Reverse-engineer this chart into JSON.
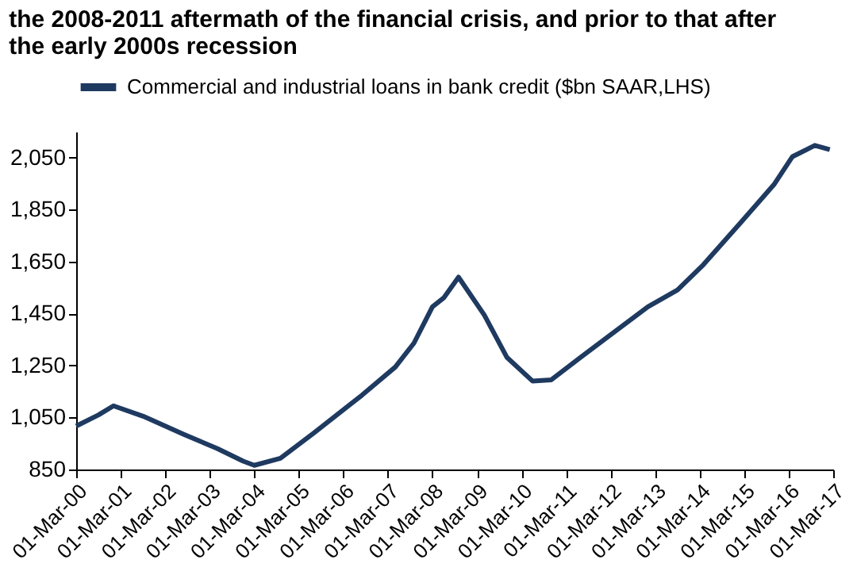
{
  "chart_data": {
    "type": "line",
    "title": [
      "the 2008-2011 aftermath of the financial crisis, and prior to that after",
      "the early 2000s recession"
    ],
    "x": [
      "2000-03",
      "2000-09",
      "2001-01",
      "2001-09",
      "2002-08",
      "2003-05",
      "2003-12",
      "2004-03",
      "2004-10",
      "2005-07",
      "2006-08",
      "2007-05",
      "2007-10",
      "2008-03",
      "2008-06",
      "2008-10",
      "2009-05",
      "2009-11",
      "2010-06",
      "2010-11",
      "2011-07",
      "2013-01",
      "2013-09",
      "2014-04",
      "2015-02",
      "2015-11",
      "2016-04",
      "2016-10",
      "2017-02"
    ],
    "series": [
      {
        "name": "Commercial and industrial loans in bank credit ($bn SAAR,LHS)",
        "color": "#1f3a60",
        "values": [
          1017,
          1060,
          1095,
          1055,
          985,
          931,
          882,
          866,
          893,
          990,
          1136,
          1244,
          1336,
          1476,
          1510,
          1590,
          1444,
          1282,
          1190,
          1195,
          1282,
          1476,
          1541,
          1638,
          1800,
          1946,
          2054,
          2097,
          2081
        ]
      }
    ],
    "xlim": [
      "2000-03-01",
      "2017-03-01"
    ],
    "xticks": [
      {
        "value": "2000-03-01",
        "label": "01-Mar-00"
      },
      {
        "value": "2001-03-01",
        "label": "01-Mar-01"
      },
      {
        "value": "2002-03-01",
        "label": "01-Mar-02"
      },
      {
        "value": "2003-03-01",
        "label": "01-Mar-03"
      },
      {
        "value": "2004-03-01",
        "label": "01-Mar-04"
      },
      {
        "value": "2005-03-01",
        "label": "01-Mar-05"
      },
      {
        "value": "2006-03-01",
        "label": "01-Mar-06"
      },
      {
        "value": "2007-03-01",
        "label": "01-Mar-07"
      },
      {
        "value": "2008-03-01",
        "label": "01-Mar-08"
      },
      {
        "value": "2009-03-01",
        "label": "01-Mar-09"
      },
      {
        "value": "2010-03-01",
        "label": "01-Mar-10"
      },
      {
        "value": "2011-03-01",
        "label": "01-Mar-11"
      },
      {
        "value": "2012-03-01",
        "label": "01-Mar-12"
      },
      {
        "value": "2013-03-01",
        "label": "01-Mar-13"
      },
      {
        "value": "2014-03-01",
        "label": "01-Mar-14"
      },
      {
        "value": "2015-03-01",
        "label": "01-Mar-15"
      },
      {
        "value": "2016-03-01",
        "label": "01-Mar-16"
      },
      {
        "value": "2017-03-01",
        "label": "01-Mar-17"
      }
    ],
    "ylim": [
      850,
      2150
    ],
    "yticks": [
      {
        "value": 850,
        "label": "850"
      },
      {
        "value": 1050,
        "label": "1,050"
      },
      {
        "value": 1250,
        "label": "1,250"
      },
      {
        "value": 1450,
        "label": "1,450"
      },
      {
        "value": 1650,
        "label": "1,650"
      },
      {
        "value": 1850,
        "label": "1,850"
      },
      {
        "value": 2050,
        "label": "2,050"
      }
    ],
    "grid": false,
    "legend": "top",
    "marker": "none",
    "line_style": "solid"
  }
}
